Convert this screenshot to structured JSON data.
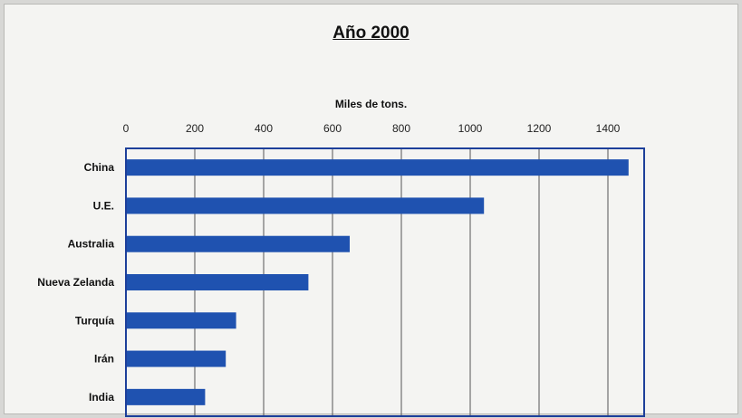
{
  "chart_data": {
    "type": "bar",
    "orientation": "horizontal",
    "title": "Año 2000",
    "xlabel": "Miles de tons.",
    "ylabel": "",
    "xlim": [
      0,
      1500
    ],
    "x_ticks": [
      0,
      200,
      400,
      600,
      800,
      1000,
      1200,
      1400
    ],
    "categories": [
      "China",
      "U.E.",
      "Australia",
      "Nueva Zelanda",
      "Turquía",
      "Irán",
      "India"
    ],
    "values": [
      1460,
      1040,
      650,
      530,
      320,
      290,
      230
    ],
    "grid": "vertical",
    "axis_position": "top",
    "colors": {
      "bar": "#1f52b0",
      "frame": "#1d3f9a",
      "grid": "#555555"
    }
  }
}
